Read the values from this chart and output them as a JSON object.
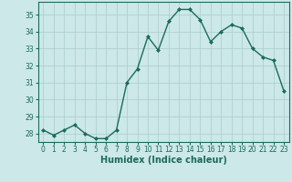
{
  "x": [
    0,
    1,
    2,
    3,
    4,
    5,
    6,
    7,
    8,
    9,
    10,
    11,
    12,
    13,
    14,
    15,
    16,
    17,
    18,
    19,
    20,
    21,
    22,
    23
  ],
  "y": [
    28.2,
    27.9,
    28.2,
    28.5,
    28.0,
    27.7,
    27.7,
    28.2,
    31.0,
    31.8,
    33.7,
    32.9,
    34.6,
    35.3,
    35.3,
    34.7,
    33.4,
    34.0,
    34.4,
    34.2,
    33.0,
    32.5,
    32.3,
    30.5
  ],
  "line_color": "#1a6b5a",
  "marker": "D",
  "marker_size": 2.0,
  "bg_color": "#cce8e8",
  "grid_color": "#aacccc",
  "xlabel": "Humidex (Indice chaleur)",
  "ylim": [
    27.5,
    35.75
  ],
  "xlim": [
    -0.5,
    23.5
  ],
  "yticks": [
    28,
    29,
    30,
    31,
    32,
    33,
    34,
    35
  ],
  "xticks": [
    0,
    1,
    2,
    3,
    4,
    5,
    6,
    7,
    8,
    9,
    10,
    11,
    12,
    13,
    14,
    15,
    16,
    17,
    18,
    19,
    20,
    21,
    22,
    23
  ],
  "tick_fontsize": 5.5,
  "xlabel_fontsize": 7.0,
  "line_width": 1.0
}
